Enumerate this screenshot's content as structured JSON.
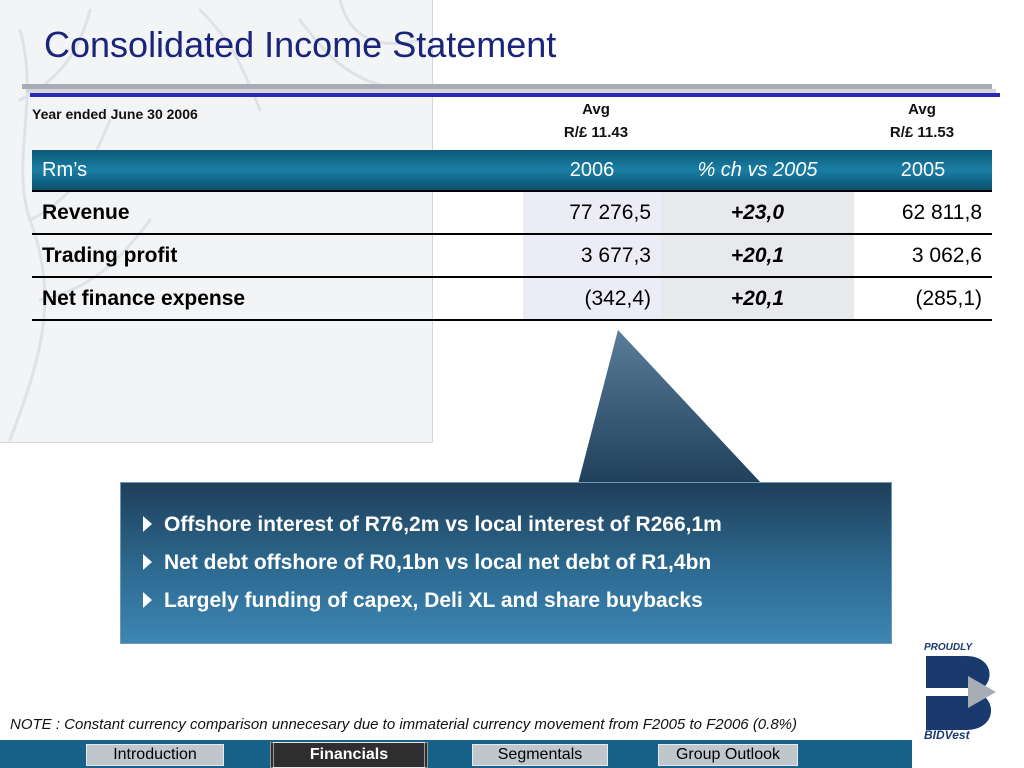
{
  "page": {
    "title": "Consolidated Income Statement"
  },
  "period": "Year ended June 30 2006",
  "avg_rates": [
    {
      "label": "Avg",
      "rate": "R/£ 11.43"
    },
    {
      "label": "Avg",
      "rate": "R/£ 11.53"
    }
  ],
  "table": {
    "headers": [
      "Rm’s",
      "2006",
      "% ch vs  2005",
      "2005"
    ],
    "rows": [
      {
        "label": "Revenue",
        "y2006": "77 276,5",
        "change": "+23,0",
        "y2005": "62 811,8"
      },
      {
        "label": "Trading profit",
        "y2006": "3 677,3",
        "change": "+20,1",
        "y2005": "3 062,6"
      },
      {
        "label": "Net finance expense",
        "y2006": "(342,4)",
        "change": "+20,1",
        "y2005": "(285,1)"
      }
    ]
  },
  "callout": {
    "bullets": [
      "Offshore interest of R76,2m vs local interest of R266,1m",
      "Net debt offshore of R0,1bn vs local net debt of R1,4bn",
      "Largely funding of capex, Deli XL and share buybacks"
    ]
  },
  "logo": {
    "tagline": "PROUDLY",
    "name": "BIDVest"
  },
  "note": "NOTE : Constant currency comparison unnecesary due to immaterial currency movement from F2005 to F2006 (0.8%)",
  "nav": [
    {
      "label": "Introduction",
      "active": false
    },
    {
      "label": "Financials",
      "active": true
    },
    {
      "label": "Segmentals",
      "active": false
    },
    {
      "label": "Group Outlook",
      "active": false
    }
  ],
  "colors": {
    "title": "#1a2478",
    "header": "#1a7ea5",
    "navbar": "#18628a",
    "callout": "#2d6b92"
  }
}
